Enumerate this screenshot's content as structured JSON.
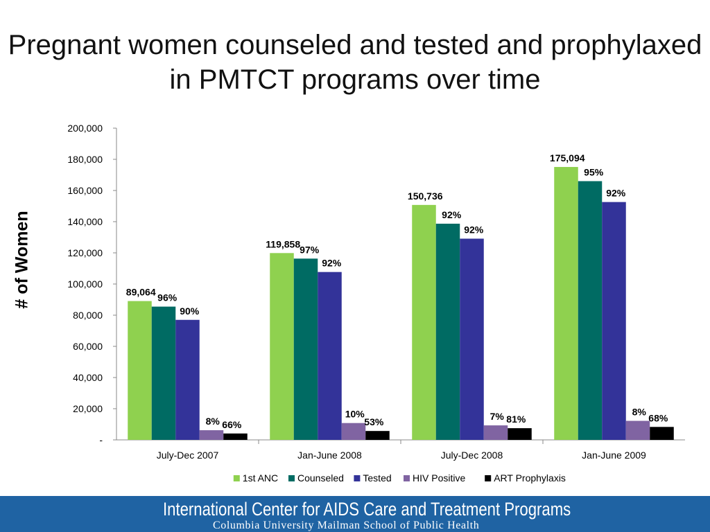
{
  "title": "Pregnant women counseled and tested and prophylaxed in PMTCT programs over time",
  "footer": {
    "org": "International Center for AIDS Care and Treatment Programs",
    "school": "Columbia University Mailman School of Public Health"
  },
  "chart_data": {
    "type": "bar",
    "title": "",
    "xlabel": "",
    "ylabel": "# of Women",
    "ylim": [
      0,
      200000
    ],
    "yticks": [
      "-",
      "20,000",
      "40,000",
      "60,000",
      "80,000",
      "100,000",
      "120,000",
      "140,000",
      "160,000",
      "180,000",
      "200,000"
    ],
    "grid": false,
    "legend": "bottom",
    "categories": [
      "July-Dec 2007",
      "Jan-June 2008",
      "July-Dec 2008",
      "Jan-June 2009"
    ],
    "series": [
      {
        "name": "1st ANC",
        "color": "#8fd14f",
        "values": [
          89064,
          119858,
          150736,
          175094
        ],
        "labels": [
          "89,064",
          "119,858",
          "150,736",
          "175,094"
        ]
      },
      {
        "name": "Counseled",
        "color": "#006b63",
        "values": [
          85500,
          116300,
          138700,
          166000
        ],
        "labels": [
          "96%",
          "97%",
          "92%",
          "95%"
        ]
      },
      {
        "name": "Tested",
        "color": "#333399",
        "values": [
          77000,
          107700,
          129100,
          152600
        ],
        "labels": [
          "90%",
          "92%",
          "92%",
          "92%"
        ]
      },
      {
        "name": "HIV Positive",
        "color": "#8064a2",
        "values": [
          6200,
          10800,
          9300,
          12200
        ],
        "labels": [
          "8%",
          "10%",
          "7%",
          "8%"
        ]
      },
      {
        "name": "ART Prophylaxis",
        "color": "#000000",
        "values": [
          4100,
          5700,
          7500,
          8300
        ],
        "labels": [
          "66%",
          "53%",
          "81%",
          "68%"
        ]
      }
    ]
  }
}
